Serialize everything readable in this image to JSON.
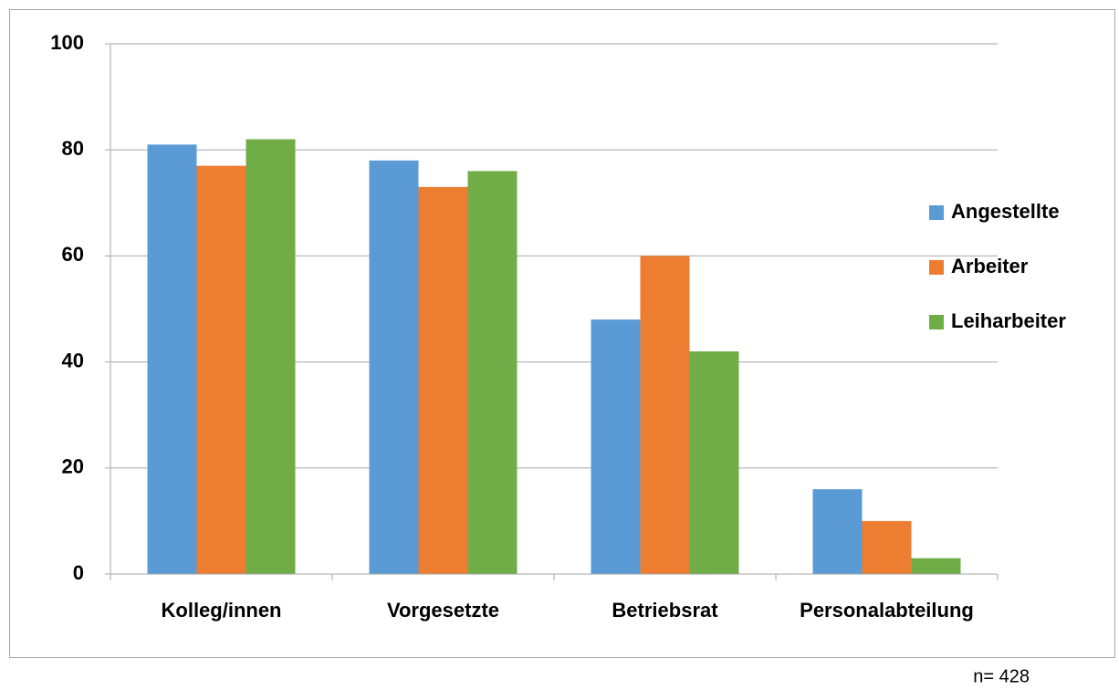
{
  "chart_data": {
    "type": "bar",
    "categories": [
      "Kolleg/innen",
      "Vorgesetzte",
      "Betriebsrat",
      "Personalabteilung"
    ],
    "series": [
      {
        "name": "Angestellte",
        "color": "#5b9bd5",
        "values": [
          81,
          78,
          48,
          16
        ]
      },
      {
        "name": "Arbeiter",
        "color": "#ed7d31",
        "values": [
          77,
          73,
          60,
          10
        ]
      },
      {
        "name": "Leiharbeiter",
        "color": "#70ad47",
        "values": [
          82,
          76,
          42,
          3
        ]
      }
    ],
    "ylim": [
      0,
      100
    ],
    "yticks": [
      0,
      20,
      40,
      60,
      80,
      100
    ],
    "grid": true,
    "legend": "right",
    "note": "n= 428"
  }
}
